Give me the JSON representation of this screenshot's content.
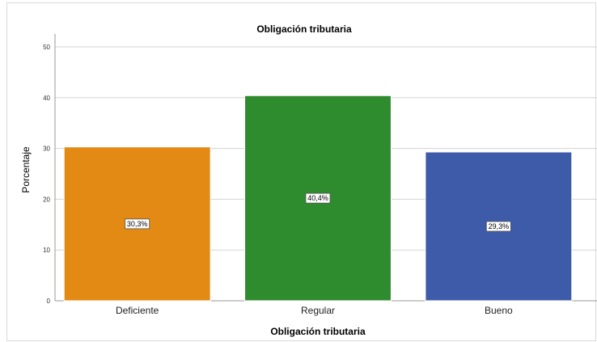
{
  "chart_data": {
    "type": "bar",
    "title": "Obligación tributaria",
    "xlabel": "Obligación tributaria",
    "ylabel": "Porcentaje",
    "categories": [
      "Deficiente",
      "Regular",
      "Bueno"
    ],
    "values": [
      30.3,
      40.4,
      29.3
    ],
    "data_labels": [
      "30,3%",
      "40,4%",
      "29,3%"
    ],
    "colors": [
      "#e28a13",
      "#2e8b2e",
      "#3d5ba9"
    ],
    "ylim": [
      0,
      50
    ],
    "yticks": [
      "0",
      "10",
      "20",
      "30",
      "40",
      "50"
    ],
    "grid": true
  }
}
